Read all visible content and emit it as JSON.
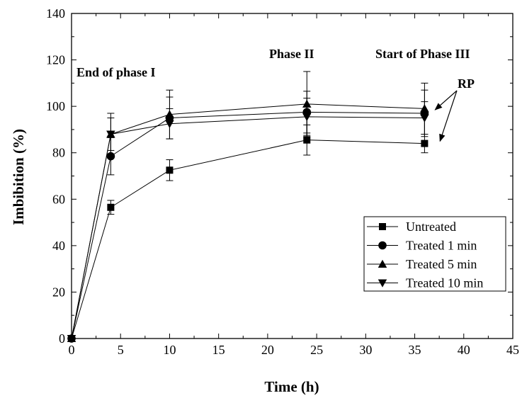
{
  "chart_data": {
    "type": "line",
    "xlabel": "Time (h)",
    "ylabel": "Imbibition (%)",
    "xlim": [
      0,
      45
    ],
    "ylim": [
      0,
      140
    ],
    "xticks": [
      0,
      5,
      10,
      15,
      20,
      25,
      30,
      35,
      40,
      45
    ],
    "yticks": [
      0,
      20,
      40,
      60,
      80,
      100,
      120,
      140
    ],
    "grid": false,
    "legend_position": "bottom-right",
    "x": [
      0,
      4,
      10,
      24,
      36
    ],
    "series": [
      {
        "name": "Untreated",
        "marker": "square",
        "values": [
          0,
          56.5,
          72.5,
          85.5,
          84
        ],
        "errors": [
          0,
          3,
          4.5,
          6.5,
          4
        ]
      },
      {
        "name": "Treated 1 min",
        "marker": "circle",
        "values": [
          0,
          78.5,
          95,
          97.5,
          97
        ],
        "errors": [
          0,
          8,
          9,
          9,
          10
        ]
      },
      {
        "name": "Treated 5 min",
        "marker": "triangle-up",
        "values": [
          0,
          88,
          96.5,
          101,
          99
        ],
        "errors": [
          0,
          9,
          10.5,
          14,
          11
        ]
      },
      {
        "name": "Treated 10 min",
        "marker": "triangle-down",
        "values": [
          0,
          88,
          92.5,
          95.5,
          95
        ],
        "errors": [
          0,
          7,
          6.5,
          8,
          7
        ]
      }
    ],
    "annotations": [
      {
        "id": "end-phase-1",
        "text": "End of phase I",
        "x": 4,
        "y": 115
      },
      {
        "id": "phase-2",
        "text": "Phase II",
        "x": 24,
        "y": 121
      },
      {
        "id": "start-phase-3",
        "text": "Start of Phase III",
        "x": 36,
        "y": 121
      },
      {
        "id": "rp",
        "text": "RP",
        "x": 41,
        "y": 109,
        "arrows_to": [
          [
            36.5,
            98.5
          ],
          [
            37,
            85
          ]
        ]
      }
    ]
  }
}
